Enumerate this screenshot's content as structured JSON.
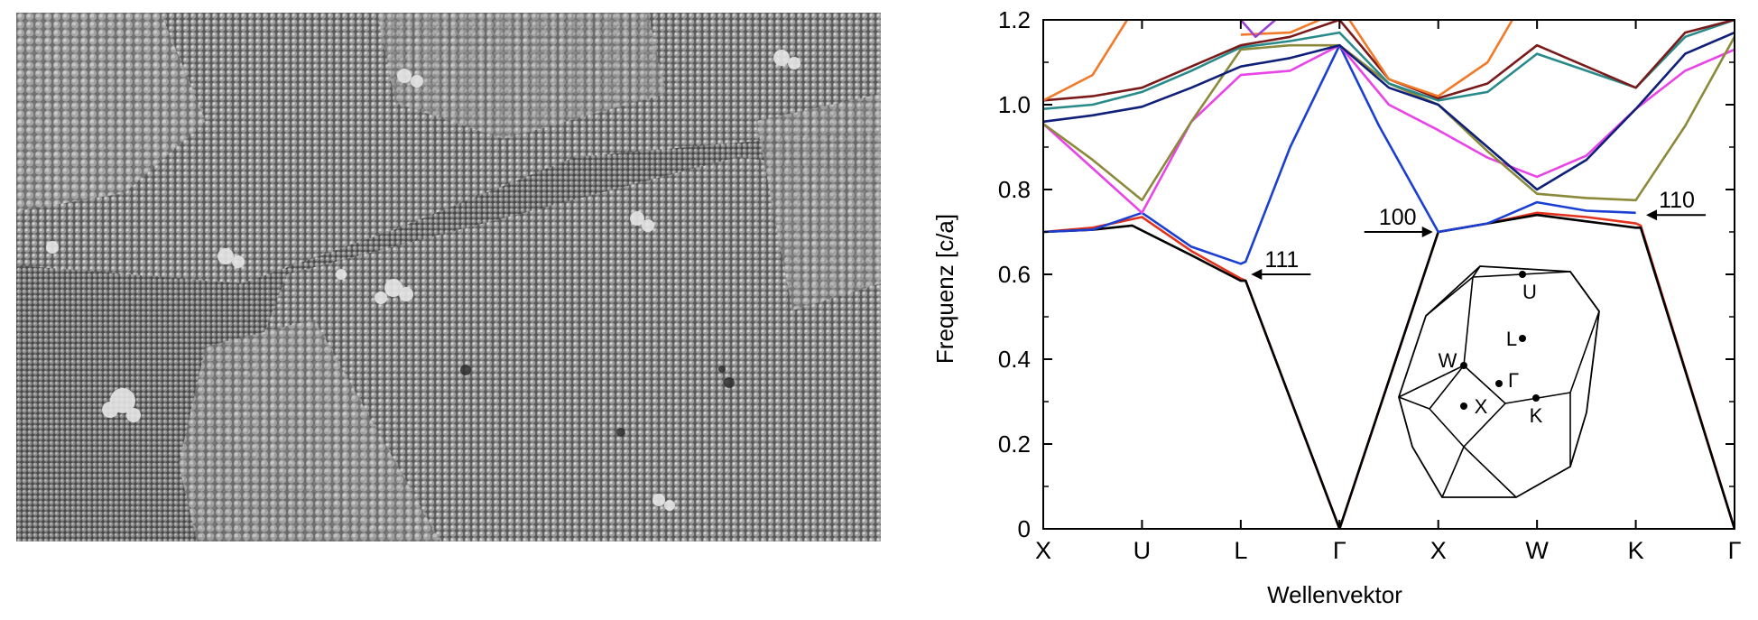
{
  "sem_image": {
    "description_icon": "sem-micrograph-icon"
  },
  "chart_data": {
    "type": "line",
    "title": "",
    "xlabel": "Wellenvektor",
    "ylabel": "Frequenz [c/a]",
    "ylim": [
      0,
      1.2
    ],
    "yticks": [
      "0",
      "0.2",
      "0.4",
      "0.6",
      "0.8",
      "1.0",
      "1.2"
    ],
    "x_ticks": [
      "X",
      "U",
      "L",
      "Γ",
      "X",
      "W",
      "K",
      "Γ"
    ],
    "x_tick_positions": [
      0,
      1,
      2,
      3,
      4,
      5,
      6,
      7
    ],
    "grid": false,
    "series": [
      {
        "color": "#e3321e",
        "points": [
          [
            0,
            0.7
          ],
          [
            0.5,
            0.71
          ],
          [
            1,
            0.735
          ],
          [
            1.5,
            0.655
          ],
          [
            2,
            0.59
          ],
          [
            2.05,
            0.585
          ],
          [
            3,
            0.0
          ],
          [
            4,
            0.7
          ],
          [
            4.5,
            0.72
          ],
          [
            5,
            0.745
          ],
          [
            5.5,
            0.735
          ],
          [
            6,
            0.72
          ],
          [
            6.05,
            0.715
          ],
          [
            7,
            0.0
          ]
        ]
      },
      {
        "color": "#000000",
        "points": [
          [
            0,
            0.7
          ],
          [
            0.5,
            0.705
          ],
          [
            0.9,
            0.715
          ],
          [
            1.5,
            0.645
          ],
          [
            2,
            0.585
          ],
          [
            2.05,
            0.585
          ],
          [
            3,
            0.0
          ],
          [
            4,
            0.7
          ],
          [
            4.5,
            0.72
          ],
          [
            5,
            0.74
          ],
          [
            5.5,
            0.725
          ],
          [
            6,
            0.71
          ],
          [
            6.05,
            0.71
          ],
          [
            7,
            0.0
          ]
        ]
      },
      {
        "color": "#1a3fd1",
        "points": [
          [
            0,
            0.7
          ],
          [
            0.5,
            0.705
          ],
          [
            1,
            0.745
          ],
          [
            1.5,
            0.665
          ],
          [
            2,
            0.625
          ],
          [
            2.05,
            0.63
          ],
          [
            2.5,
            0.9
          ],
          [
            3,
            1.14
          ],
          [
            3.4,
            0.95
          ],
          [
            4,
            0.7
          ],
          [
            4.5,
            0.72
          ],
          [
            5,
            0.77
          ],
          [
            5.5,
            0.75
          ],
          [
            6,
            0.745
          ]
        ]
      },
      {
        "color": "#e844e8",
        "points": [
          [
            0,
            0.955
          ],
          [
            0.5,
            0.85
          ],
          [
            1,
            0.745
          ],
          [
            1.5,
            0.96
          ],
          [
            2,
            1.07
          ],
          [
            2.5,
            1.08
          ],
          [
            3,
            1.14
          ],
          [
            3.5,
            1.0
          ],
          [
            4,
            0.94
          ],
          [
            4.5,
            0.875
          ],
          [
            5,
            0.83
          ],
          [
            5.5,
            0.88
          ],
          [
            6,
            0.99
          ],
          [
            6.5,
            1.08
          ],
          [
            7,
            1.13
          ]
        ]
      },
      {
        "color": "#8a8a3a",
        "points": [
          [
            0,
            0.955
          ],
          [
            0.5,
            0.87
          ],
          [
            1,
            0.775
          ],
          [
            1.5,
            0.96
          ],
          [
            2,
            1.13
          ],
          [
            2.5,
            1.14
          ],
          [
            3,
            1.14
          ],
          [
            3.5,
            1.05
          ],
          [
            4,
            1.0
          ],
          [
            4.5,
            0.89
          ],
          [
            5,
            0.79
          ],
          [
            5.5,
            0.78
          ],
          [
            6,
            0.775
          ],
          [
            6.5,
            0.95
          ],
          [
            7,
            1.16
          ]
        ]
      },
      {
        "color": "#0f1f7a",
        "points": [
          [
            0,
            0.96
          ],
          [
            0.5,
            0.975
          ],
          [
            1,
            0.995
          ],
          [
            1.5,
            1.04
          ],
          [
            2,
            1.09
          ],
          [
            2.5,
            1.11
          ],
          [
            3,
            1.14
          ],
          [
            3.5,
            1.04
          ],
          [
            4,
            1.0
          ],
          [
            4.5,
            0.9
          ],
          [
            5,
            0.8
          ],
          [
            5.5,
            0.87
          ],
          [
            6,
            0.99
          ],
          [
            6.5,
            1.12
          ],
          [
            7,
            1.17
          ]
        ]
      },
      {
        "color": "#2a8a8a",
        "points": [
          [
            0,
            0.99
          ],
          [
            0.5,
            1.0
          ],
          [
            1,
            1.03
          ],
          [
            1.5,
            1.08
          ],
          [
            2,
            1.135
          ],
          [
            2.5,
            1.15
          ],
          [
            3,
            1.17
          ],
          [
            3.5,
            1.05
          ],
          [
            4,
            1.01
          ],
          [
            4.5,
            1.03
          ],
          [
            5,
            1.12
          ],
          [
            5.5,
            1.08
          ],
          [
            6,
            1.04
          ],
          [
            6.5,
            1.16
          ],
          [
            7,
            1.2
          ]
        ]
      },
      {
        "color": "#7a1a1a",
        "points": [
          [
            0,
            1.01
          ],
          [
            0.5,
            1.02
          ],
          [
            1,
            1.04
          ],
          [
            1.5,
            1.09
          ],
          [
            2,
            1.14
          ],
          [
            2.5,
            1.16
          ],
          [
            3,
            1.2
          ],
          [
            3.5,
            1.06
          ],
          [
            4,
            1.015
          ],
          [
            4.5,
            1.05
          ],
          [
            5,
            1.14
          ],
          [
            5.5,
            1.09
          ],
          [
            6,
            1.04
          ],
          [
            6.5,
            1.17
          ],
          [
            7,
            1.2
          ]
        ]
      },
      {
        "color": "#f07a2a",
        "points": [
          [
            0,
            1.01
          ],
          [
            0.5,
            1.07
          ],
          [
            0.85,
            1.2
          ]
        ]
      },
      {
        "color": "#f07a2a",
        "points": [
          [
            2,
            1.165
          ],
          [
            2.5,
            1.17
          ],
          [
            2.8,
            1.2
          ]
        ]
      },
      {
        "color": "#f07a2a",
        "points": [
          [
            3.1,
            1.2
          ],
          [
            3.5,
            1.06
          ],
          [
            4,
            1.02
          ],
          [
            4.5,
            1.1
          ],
          [
            4.75,
            1.2
          ]
        ]
      },
      {
        "color": "#9b3fd1",
        "points": [
          [
            2.0,
            1.2
          ],
          [
            2.15,
            1.16
          ],
          [
            2.35,
            1.2
          ]
        ]
      }
    ],
    "annotations": [
      {
        "text": "111",
        "x": 2.05,
        "y": 0.6
      },
      {
        "text": "100",
        "x": 4.0,
        "y": 0.7
      },
      {
        "text": "110",
        "x": 6.05,
        "y": 0.74
      }
    ],
    "inset": {
      "labels": [
        "U",
        "L",
        "W",
        "Γ",
        "X",
        "K"
      ]
    }
  }
}
